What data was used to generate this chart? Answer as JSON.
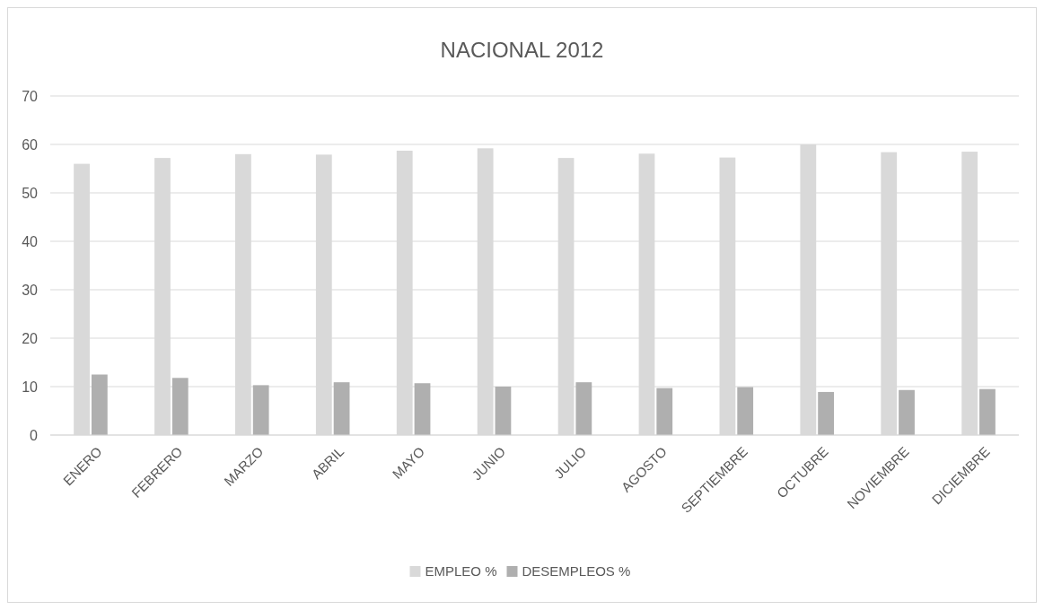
{
  "chart_data": {
    "type": "bar",
    "title": "NACIONAL 2012",
    "categories": [
      "ENERO",
      "FEBRERO",
      "MARZO",
      "ABRIL",
      "MAYO",
      "JUNIO",
      "JULIO",
      "AGOSTO",
      "SEPTIEMBRE",
      "OCTUBRE",
      "NOVIEMBRE",
      "DICIEMBRE"
    ],
    "series": [
      {
        "name": "EMPLEO %",
        "color": "#d9d9d9",
        "values": [
          56.0,
          57.2,
          58.0,
          57.9,
          58.7,
          59.2,
          57.2,
          58.1,
          57.3,
          60.0,
          58.4,
          58.5
        ]
      },
      {
        "name": "DESEMPLEOS %",
        "color": "#afafaf",
        "values": [
          12.5,
          11.8,
          10.3,
          10.9,
          10.7,
          10.0,
          10.9,
          9.7,
          9.9,
          8.9,
          9.3,
          9.5
        ]
      }
    ],
    "ylim": [
      0,
      70
    ],
    "yticks": [
      0,
      10,
      20,
      30,
      40,
      50,
      60,
      70
    ],
    "grid": "y",
    "legend": "bottom"
  }
}
